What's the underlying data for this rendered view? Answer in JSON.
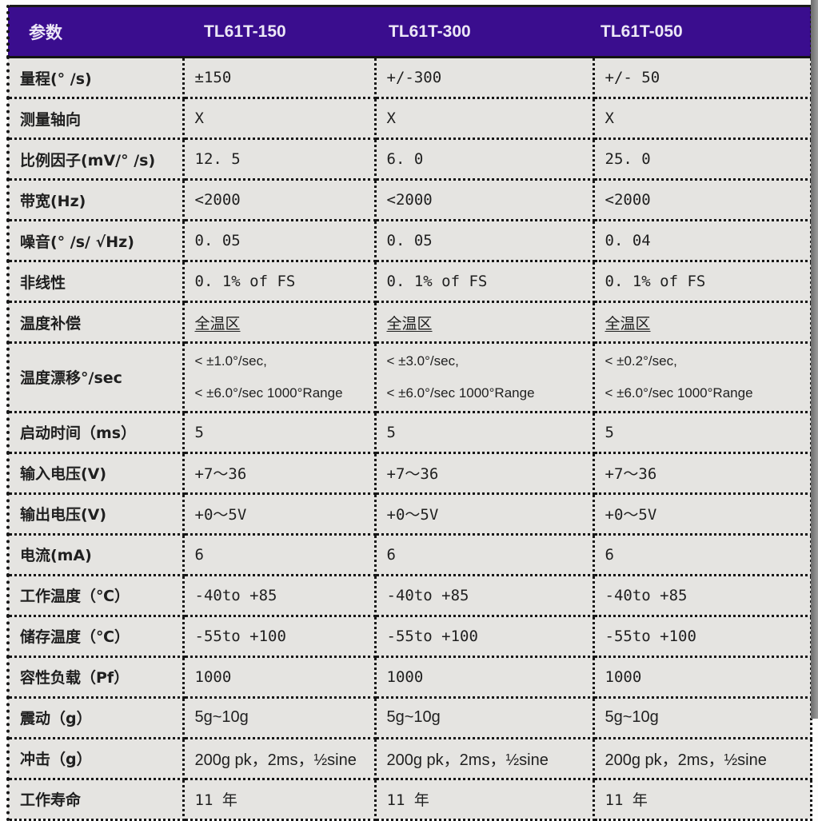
{
  "colors": {
    "header_bg": "#3a0d8e",
    "header_text": "#ece7f6",
    "cell_bg": "#e5e4e1",
    "border": "#151515",
    "text": "#1f1f1f"
  },
  "header": {
    "columns": [
      "参数",
      "TL61T-150",
      "TL61T-300",
      "TL61T-050"
    ]
  },
  "rows": [
    {
      "label": "量程(° /s)",
      "values": [
        "±150",
        "+/-300",
        "+/- 50"
      ]
    },
    {
      "label": "测量轴向",
      "values": [
        "X",
        "X",
        "X"
      ]
    },
    {
      "label": "比例因子(mV/° /s)",
      "values": [
        "12. 5",
        "6. 0",
        "25. 0"
      ]
    },
    {
      "label": "带宽(Hz)",
      "values": [
        "<2000",
        "<2000",
        "<2000"
      ]
    },
    {
      "label": "噪音(° /s/ √Hz)",
      "values": [
        "0. 05",
        "0. 05",
        "0. 04"
      ]
    },
    {
      "label": "非线性",
      "values": [
        "0. 1% of FS",
        "0. 1% of FS",
        "0. 1% of FS"
      ]
    },
    {
      "label": "温度补偿",
      "values": [
        "全温区",
        "全温区",
        "全温区"
      ],
      "style": "underline"
    },
    {
      "label": "温度漂移°/sec",
      "values": [
        "< ±1.0°/sec,\n< ±6.0°/sec 1000°Range",
        "< ±3.0°/sec,\n< ±6.0°/sec 1000°Range",
        "< ±0.2°/sec,\n< ±6.0°/sec 1000°Range"
      ],
      "style": "twoline"
    },
    {
      "label": "启动时间（ms）",
      "values": [
        "5",
        "5",
        "5"
      ]
    },
    {
      "label": "输入电压(V)",
      "values": [
        "+7～36",
        "+7～36",
        "+7～36"
      ]
    },
    {
      "label": "输出电压(V)",
      "values": [
        "+0～5V",
        "+0～5V",
        "+0～5V"
      ]
    },
    {
      "label": "电流(mA)",
      "values": [
        "6",
        "6",
        "6"
      ]
    },
    {
      "label": "工作温度（℃）",
      "values": [
        "-40to +85",
        "-40to +85",
        "-40to +85"
      ]
    },
    {
      "label": "储存温度（℃）",
      "values": [
        "-55to +100",
        "-55to +100",
        "-55to +100"
      ]
    },
    {
      "label": "容性负载（Pf）",
      "values": [
        "1000",
        "1000",
        "1000"
      ]
    },
    {
      "label": "震动（g）",
      "values": [
        "5g~10g",
        "5g~10g",
        "5g~10g"
      ],
      "style": "sans"
    },
    {
      "label": "冲击（g）",
      "values": [
        "200g pk，2ms，½sine",
        "200g pk，2ms，½sine",
        "200g pk，2ms，½sine"
      ],
      "style": "sans"
    },
    {
      "label": "工作寿命",
      "values": [
        "11 年",
        "11 年",
        "11 年"
      ]
    }
  ]
}
